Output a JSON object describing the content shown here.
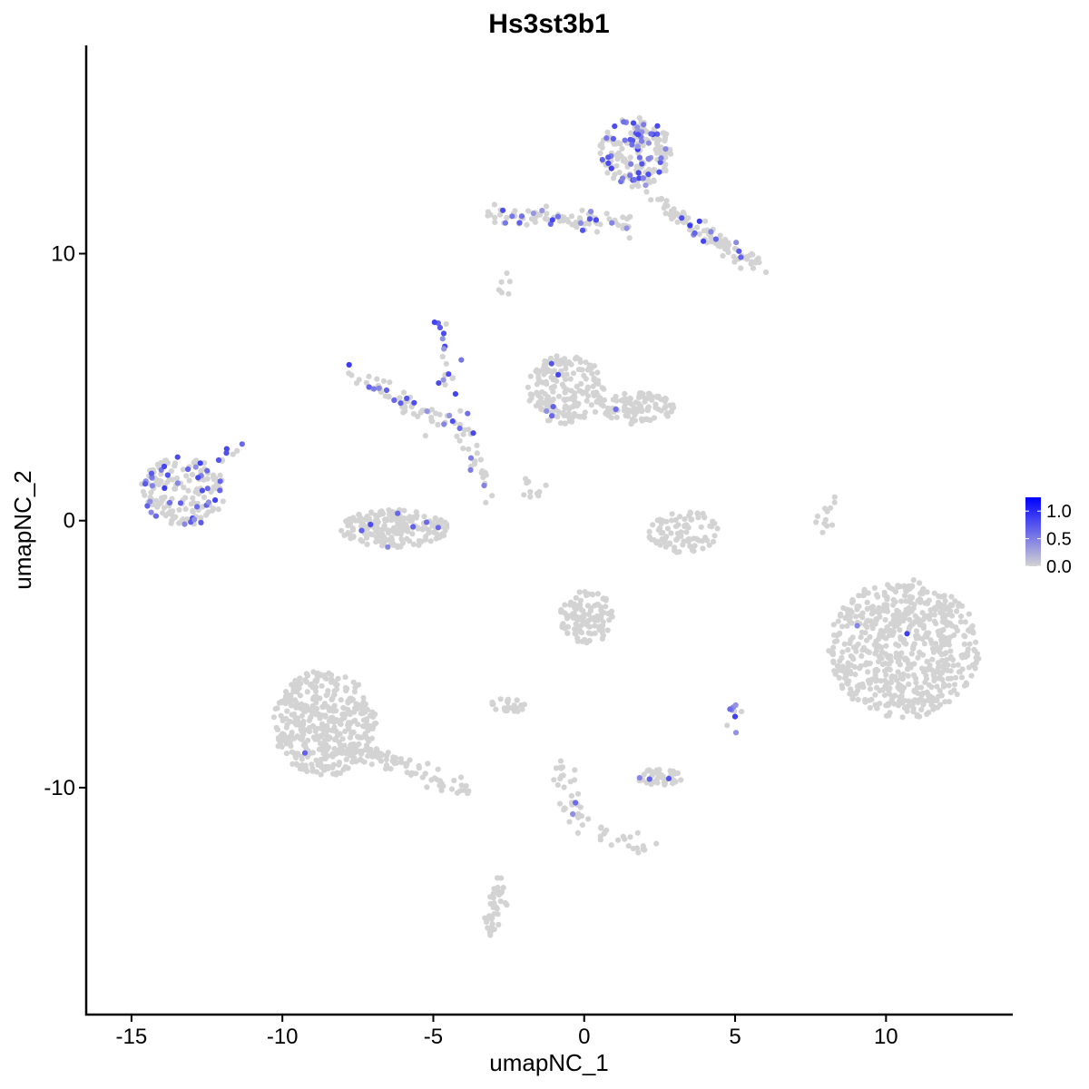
{
  "chart_data": {
    "type": "scatter",
    "title": "Hs3st3b1",
    "xlabel": "umapNC_1",
    "ylabel": "umapNC_2",
    "xlim": [
      -16.5,
      14.2
    ],
    "ylim": [
      -18.5,
      17.8
    ],
    "x_ticks": [
      -15,
      -10,
      -5,
      0,
      5,
      10
    ],
    "x_tick_labels": [
      "-15",
      "-10",
      "-5",
      "0",
      "5",
      "10"
    ],
    "y_ticks": [
      -10,
      0,
      10
    ],
    "y_tick_labels": [
      "-10",
      "0",
      "10"
    ],
    "grid": false,
    "legend_position": "right",
    "color_scale": {
      "low": "#d3d3d3",
      "high": "#0000ff",
      "min": 0,
      "max": 1.25,
      "breaks": [
        1.0,
        0.5,
        0.0
      ],
      "break_labels": [
        "1.0",
        "0.5",
        "0.0"
      ]
    },
    "clusters": [
      {
        "name": "c1",
        "shape": "ellipse",
        "center": [
          -13.3,
          1.1
        ],
        "radius": [
          1.4,
          1.3
        ],
        "n": 170,
        "expr_frac": 0.24
      },
      {
        "name": "c1b",
        "shape": "line",
        "from": [
          -12.4,
          1.6
        ],
        "to": [
          -11.5,
          2.8
        ],
        "n": 14,
        "expr_frac": 0.3
      },
      {
        "name": "c2",
        "shape": "ellipse",
        "center": [
          -6.3,
          -0.3
        ],
        "radius": [
          1.8,
          0.7
        ],
        "n": 200,
        "expr_frac": 0.04
      },
      {
        "name": "c3",
        "shape": "line",
        "from": [
          -7.7,
          5.5
        ],
        "to": [
          -4.8,
          3.7
        ],
        "n": 60,
        "expr_frac": 0.22
      },
      {
        "name": "c4",
        "shape": "line",
        "from": [
          -4.8,
          7.6
        ],
        "to": [
          -4.2,
          3.5
        ],
        "n": 25,
        "expr_frac": 0.5
      },
      {
        "name": "c5",
        "shape": "line",
        "from": [
          -4.2,
          3.8
        ],
        "to": [
          -3.1,
          0.4
        ],
        "n": 30,
        "expr_frac": 0.15
      },
      {
        "name": "c6",
        "shape": "ellipse",
        "center": [
          -0.6,
          4.9
        ],
        "radius": [
          1.3,
          1.3
        ],
        "n": 180,
        "expr_frac": 0.02
      },
      {
        "name": "c6b",
        "shape": "ellipse",
        "center": [
          1.7,
          4.2
        ],
        "radius": [
          1.3,
          0.6
        ],
        "n": 110,
        "expr_frac": 0.02
      },
      {
        "name": "c7",
        "shape": "ellipse",
        "center": [
          3.3,
          -0.4
        ],
        "radius": [
          1.2,
          0.8
        ],
        "n": 90,
        "expr_frac": 0
      },
      {
        "name": "c8",
        "shape": "ellipse",
        "center": [
          10.6,
          -4.8
        ],
        "radius": [
          2.5,
          2.6
        ],
        "n": 650,
        "expr_frac": 0.002
      },
      {
        "name": "c9",
        "shape": "ellipse",
        "center": [
          -8.6,
          -7.6
        ],
        "radius": [
          1.7,
          2.0
        ],
        "n": 420,
        "expr_frac": 0.003
      },
      {
        "name": "c9b",
        "shape": "line",
        "from": [
          -7.2,
          -8.5
        ],
        "to": [
          -3.9,
          -10.3
        ],
        "n": 70,
        "expr_frac": 0.02
      },
      {
        "name": "c10",
        "shape": "ellipse",
        "center": [
          0.1,
          -3.6
        ],
        "radius": [
          0.9,
          1.0
        ],
        "n": 110,
        "expr_frac": 0
      },
      {
        "name": "c11",
        "shape": "ellipse",
        "center": [
          1.7,
          13.8
        ],
        "radius": [
          1.2,
          1.3
        ],
        "n": 190,
        "expr_frac": 0.27
      },
      {
        "name": "c12",
        "shape": "line",
        "from": [
          -3.3,
          11.5
        ],
        "to": [
          1.6,
          11.1
        ],
        "n": 90,
        "expr_frac": 0.22
      },
      {
        "name": "c13",
        "shape": "line",
        "from": [
          2.3,
          12.0
        ],
        "to": [
          5.8,
          9.5
        ],
        "n": 110,
        "expr_frac": 0.1
      },
      {
        "name": "c14",
        "shape": "line",
        "from": [
          -2.7,
          -13.5
        ],
        "to": [
          -3.2,
          -15.4
        ],
        "n": 40,
        "expr_frac": 0
      },
      {
        "name": "c15",
        "shape": "line",
        "from": [
          -0.8,
          -9.3
        ],
        "to": [
          -0.1,
          -11.8
        ],
        "n": 35,
        "expr_frac": 0.03
      },
      {
        "name": "c16",
        "shape": "ellipse",
        "center": [
          2.5,
          -9.6
        ],
        "radius": [
          0.8,
          0.3
        ],
        "n": 40,
        "expr_frac": 0.1
      },
      {
        "name": "c17",
        "shape": "ellipse",
        "center": [
          -2.5,
          -6.9
        ],
        "radius": [
          0.6,
          0.3
        ],
        "n": 25,
        "expr_frac": 0.04
      },
      {
        "name": "c18",
        "shape": "line",
        "from": [
          8.2,
          0.8
        ],
        "to": [
          7.9,
          -0.4
        ],
        "n": 12,
        "expr_frac": 0
      },
      {
        "name": "c19",
        "shape": "line",
        "from": [
          0.4,
          -11.6
        ],
        "to": [
          2.5,
          -12.5
        ],
        "n": 22,
        "expr_frac": 0
      },
      {
        "name": "c20",
        "shape": "line",
        "from": [
          -2.1,
          1.4
        ],
        "to": [
          -1.4,
          0.7
        ],
        "n": 10,
        "expr_frac": 0.1
      },
      {
        "name": "c21",
        "shape": "line",
        "from": [
          4.8,
          -7.2
        ],
        "to": [
          5.2,
          -7.8
        ],
        "n": 10,
        "expr_frac": 0.4
      },
      {
        "name": "c22",
        "shape": "line",
        "from": [
          -2.9,
          8.7
        ],
        "to": [
          -2.6,
          8.9
        ],
        "n": 6,
        "expr_frac": 0
      }
    ]
  }
}
